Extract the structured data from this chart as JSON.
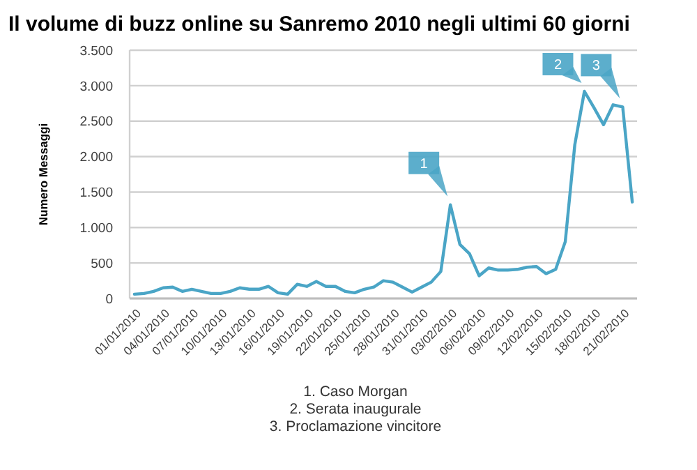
{
  "chart_data": {
    "type": "line",
    "title": "Il volume di buzz online su Sanremo 2010 negli ultimi 60 giorni",
    "ylabel": "Numero Messaggi",
    "x": [
      "2010-01-01",
      "2010-01-02",
      "2010-01-03",
      "2010-01-04",
      "2010-01-05",
      "2010-01-06",
      "2010-01-07",
      "2010-01-08",
      "2010-01-09",
      "2010-01-10",
      "2010-01-11",
      "2010-01-12",
      "2010-01-13",
      "2010-01-14",
      "2010-01-15",
      "2010-01-16",
      "2010-01-17",
      "2010-01-18",
      "2010-01-19",
      "2010-01-20",
      "2010-01-21",
      "2010-01-22",
      "2010-01-23",
      "2010-01-24",
      "2010-01-25",
      "2010-01-26",
      "2010-01-27",
      "2010-01-28",
      "2010-01-29",
      "2010-01-30",
      "2010-01-31",
      "2010-02-01",
      "2010-02-02",
      "2010-02-03",
      "2010-02-04",
      "2010-02-05",
      "2010-02-06",
      "2010-02-07",
      "2010-02-08",
      "2010-02-09",
      "2010-02-10",
      "2010-02-11",
      "2010-02-12",
      "2010-02-13",
      "2010-02-14",
      "2010-02-15",
      "2010-02-16",
      "2010-02-17",
      "2010-02-18",
      "2010-02-19",
      "2010-02-20",
      "2010-02-21",
      "2010-02-22"
    ],
    "series": [
      {
        "color": "#4aa5c6",
        "values": [
          60,
          70,
          100,
          150,
          160,
          100,
          130,
          100,
          70,
          70,
          100,
          150,
          130,
          130,
          170,
          80,
          60,
          200,
          170,
          240,
          170,
          170,
          100,
          80,
          130,
          160,
          250,
          230,
          160,
          90,
          160,
          230,
          380,
          1320,
          760,
          630,
          320,
          430,
          400,
          400,
          410,
          440,
          450,
          350,
          410,
          800,
          2170,
          2920,
          2690,
          2450,
          2730,
          2700,
          1360
        ]
      }
    ],
    "xlim": [
      "2009-12-31T12:00",
      "2010-02-22T12:00"
    ],
    "xticks": [
      {
        "value": "2010-01-01",
        "label": "01/01/2010"
      },
      {
        "value": "2010-01-04",
        "label": "04/01/2010"
      },
      {
        "value": "2010-01-07",
        "label": "07/01/2010"
      },
      {
        "value": "2010-01-10",
        "label": "10/01/2010"
      },
      {
        "value": "2010-01-13",
        "label": "13/01/2010"
      },
      {
        "value": "2010-01-16",
        "label": "16/01/2010"
      },
      {
        "value": "2010-01-19",
        "label": "19/01/2010"
      },
      {
        "value": "2010-01-22",
        "label": "22/01/2010"
      },
      {
        "value": "2010-01-25",
        "label": "25/01/2010"
      },
      {
        "value": "2010-01-28",
        "label": "28/01/2010"
      },
      {
        "value": "2010-01-31",
        "label": "31/01/2010"
      },
      {
        "value": "2010-02-03",
        "label": "03/02/2010"
      },
      {
        "value": "2010-02-06",
        "label": "06/02/2010"
      },
      {
        "value": "2010-02-09",
        "label": "09/02/2010"
      },
      {
        "value": "2010-02-12",
        "label": "12/02/2010"
      },
      {
        "value": "2010-02-15",
        "label": "15/02/2010"
      },
      {
        "value": "2010-02-18",
        "label": "18/02/2010"
      },
      {
        "value": "2010-02-21",
        "label": "21/02/2010"
      }
    ],
    "ylim": [
      0,
      3500
    ],
    "yticks": [
      0,
      {
        "value": 500,
        "label": "500"
      },
      {
        "value": 1000,
        "label": "1.000"
      },
      {
        "value": 1500,
        "label": "1.500"
      },
      {
        "value": 2000,
        "label": "2.000"
      },
      {
        "value": 2500,
        "label": "2.500"
      },
      {
        "value": 3000,
        "label": "3.000"
      },
      {
        "value": 3500,
        "label": "3.500"
      }
    ],
    "grid": "y",
    "marker": "none",
    "line_style": "solid",
    "annotations": [
      {
        "text": "1",
        "x": "2010-02-03",
        "y": 1320
      },
      {
        "text": "2",
        "x": "2010-02-17",
        "y": 2920
      },
      {
        "text": "3",
        "x": "2010-02-21",
        "y": 2700
      },
      "1. Caso Morgan",
      "2. Serata inaugurale",
      "3. Proclamazione vincitore"
    ]
  }
}
